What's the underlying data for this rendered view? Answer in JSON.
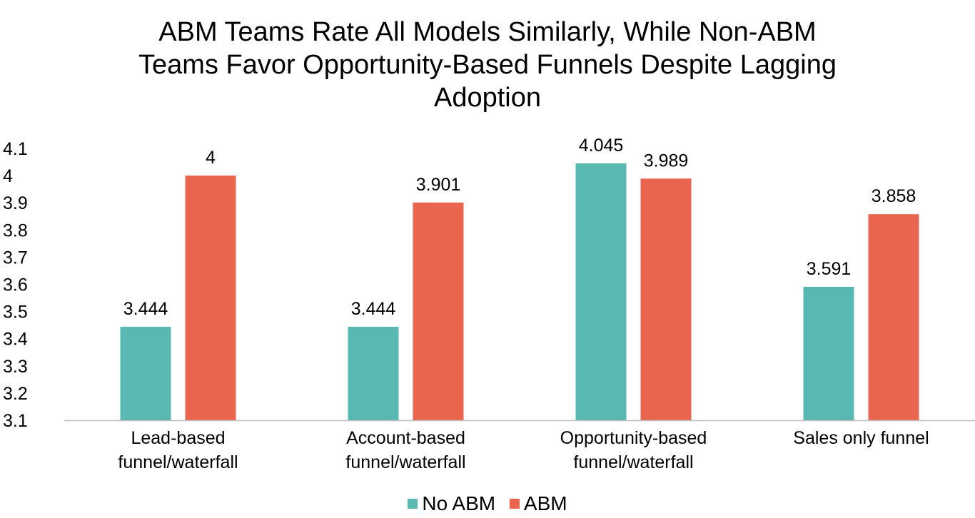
{
  "chart_data": {
    "type": "bar",
    "title_lines": [
      "ABM Teams Rate All Models Similarly, While Non-ABM",
      "Teams Favor Opportunity-Based Funnels Despite Lagging",
      "Adoption"
    ],
    "categories": [
      [
        "Lead-based",
        "funnel/waterfall"
      ],
      [
        "Account-based",
        "funnel/waterfall"
      ],
      [
        "Opportunity-based",
        "funnel/waterfall"
      ],
      [
        "Sales only funnel"
      ]
    ],
    "series": [
      {
        "name": "No ABM",
        "color": "#5AB8B2",
        "values": [
          3.444,
          3.444,
          4.045,
          3.591
        ],
        "labels": [
          "3.444",
          "3.444",
          "4.045",
          "3.591"
        ]
      },
      {
        "name": "ABM",
        "color": "#EA654D",
        "values": [
          4,
          3.901,
          3.989,
          3.858
        ],
        "labels": [
          "4",
          "3.901",
          "3.989",
          "3.858"
        ]
      }
    ],
    "ylim": [
      3.1,
      4.1
    ],
    "yticks": [
      "3.1",
      "3.2",
      "3.3",
      "3.4",
      "3.5",
      "3.6",
      "3.7",
      "3.8",
      "3.9",
      "4",
      "4.1"
    ],
    "grid": false,
    "legend": "bottom",
    "axis_color": "#BFBFBF"
  }
}
